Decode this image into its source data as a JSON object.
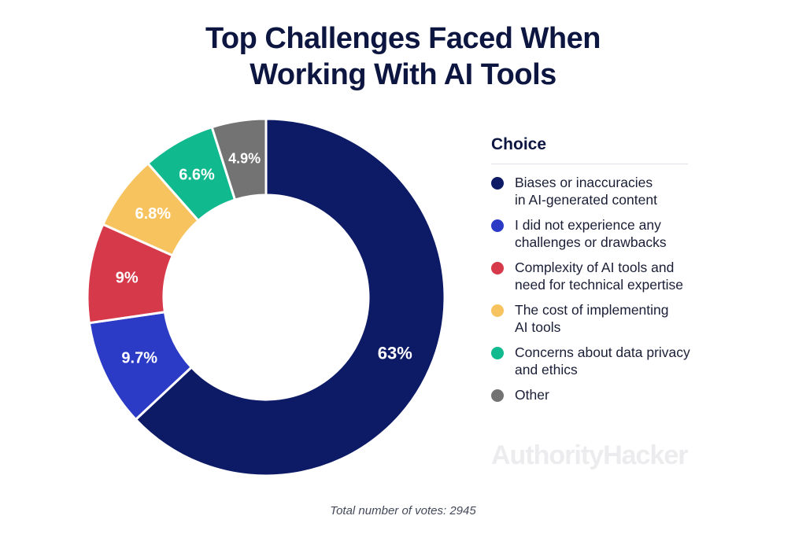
{
  "title_lines": [
    "Top Challenges Faced When",
    "Working With AI Tools"
  ],
  "legend": {
    "title": "Choice",
    "items": [
      {
        "lines": [
          "Biases or inaccuracies",
          "in AI-generated content"
        ]
      },
      {
        "lines": [
          "I did not experience any",
          "challenges or drawbacks"
        ]
      },
      {
        "lines": [
          "Complexity of AI tools and",
          "need for technical expertise"
        ]
      },
      {
        "lines": [
          "The cost of implementing",
          "AI tools"
        ]
      },
      {
        "lines": [
          "Concerns about data privacy",
          "and ethics"
        ]
      },
      {
        "lines": [
          "Other"
        ]
      }
    ]
  },
  "watermark": "AuthorityHacker",
  "footnote": "Total number of votes: 2945",
  "chart_data": {
    "type": "pie",
    "donut": true,
    "categories": [
      "Biases or inaccuracies in AI-generated content",
      "I did not experience any challenges or drawbacks",
      "Complexity of AI tools and need for technical expertise",
      "The cost of implementing AI tools",
      "Concerns about data privacy and ethics",
      "Other"
    ],
    "values": [
      63,
      9.7,
      9,
      6.8,
      6.6,
      4.9
    ],
    "labels": [
      "63%",
      "9.7%",
      "9%",
      "6.8%",
      "6.6%",
      "4.9%"
    ],
    "colors": [
      "#0d1a66",
      "#2b3bc6",
      "#d63a4a",
      "#f7c35f",
      "#10b98e",
      "#737373"
    ],
    "legend_title": "Choice",
    "legend_position": "right"
  }
}
